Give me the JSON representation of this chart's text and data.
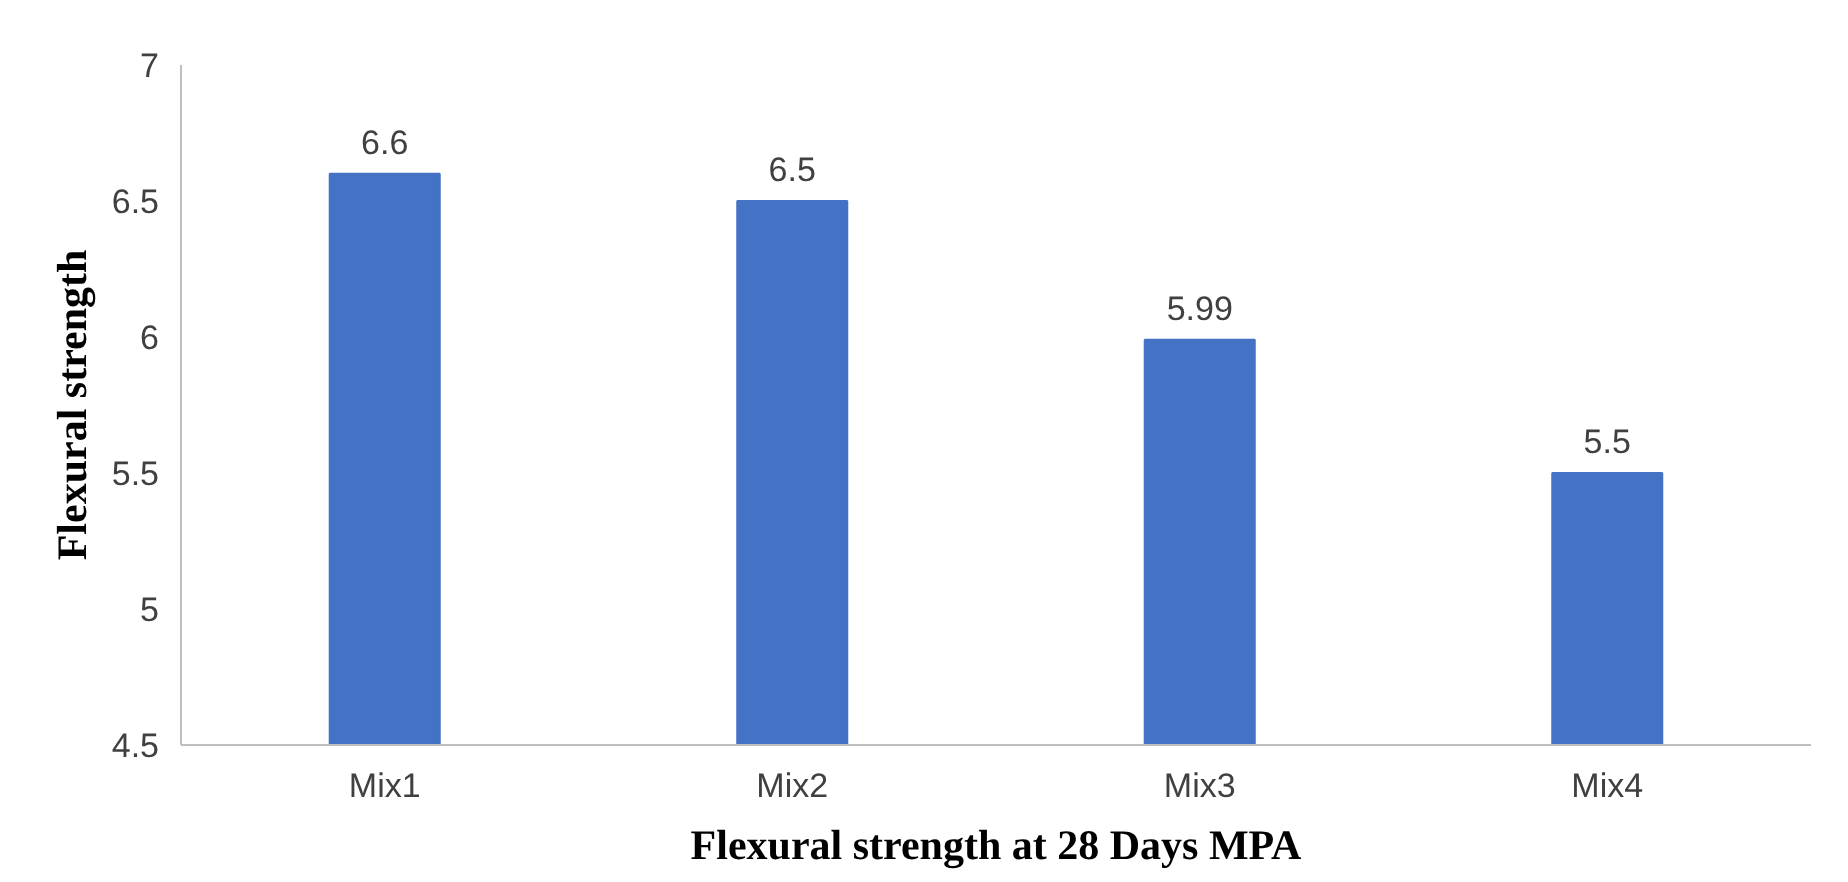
{
  "chart_data": {
    "type": "bar",
    "xlabel": "Flexural strength at 28 Days MPA",
    "ylabel": "Flexural strength",
    "categories": [
      "Mix1",
      "Mix2",
      "Mix3",
      "Mix4"
    ],
    "values": [
      6.6,
      6.5,
      5.99,
      5.5
    ],
    "color": "#4472c4",
    "ylim": [
      4.5,
      7
    ],
    "yticks": [
      4.5,
      5,
      5.5,
      6,
      6.5,
      7
    ],
    "grid": false,
    "data_labels": true
  }
}
